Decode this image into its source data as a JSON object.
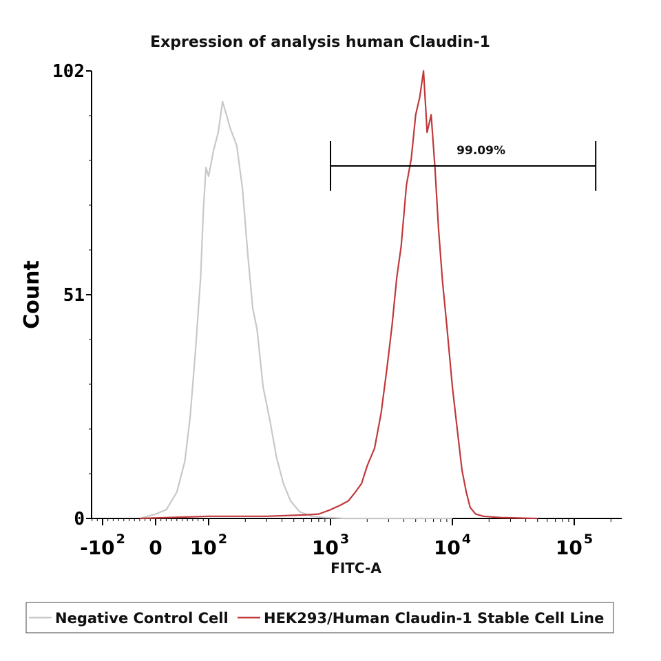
{
  "chart_data": {
    "type": "line",
    "title": "Expression of analysis human Claudin-1",
    "xlabel": "FITC-A",
    "ylabel": "Count",
    "x_scale": "biexponential",
    "x_range": [
      -200,
      200000
    ],
    "ylim": [
      0,
      102
    ],
    "y_ticks": [
      "0",
      "51",
      "102"
    ],
    "x_ticks": [
      {
        "value": -100,
        "base": "-10",
        "exp": "2"
      },
      {
        "value": 0,
        "base": "0",
        "exp": ""
      },
      {
        "value": 100,
        "base": "10",
        "exp": "2"
      },
      {
        "value": 1000,
        "base": "10",
        "exp": "3"
      },
      {
        "value": 10000,
        "base": "10",
        "exp": "4"
      },
      {
        "value": 100000,
        "base": "10",
        "exp": "5"
      }
    ],
    "gate": {
      "label": "99.09%",
      "x_start": 1000,
      "x_end": 150000
    },
    "grid": false,
    "legend_position": "bottom",
    "series": [
      {
        "name": "Negative Control Cell",
        "color": "#c8c8c8",
        "points": [
          [
            -30,
            0
          ],
          [
            0,
            1
          ],
          [
            20,
            2
          ],
          [
            40,
            6
          ],
          [
            55,
            13
          ],
          [
            65,
            23
          ],
          [
            75,
            38
          ],
          [
            85,
            55
          ],
          [
            90,
            70
          ],
          [
            95,
            80
          ],
          [
            100,
            78
          ],
          [
            110,
            84
          ],
          [
            120,
            88
          ],
          [
            130,
            95
          ],
          [
            140,
            92
          ],
          [
            150,
            89
          ],
          [
            170,
            85
          ],
          [
            190,
            75
          ],
          [
            210,
            60
          ],
          [
            230,
            48
          ],
          [
            250,
            43
          ],
          [
            280,
            30
          ],
          [
            320,
            22
          ],
          [
            360,
            14
          ],
          [
            410,
            8
          ],
          [
            470,
            4
          ],
          [
            560,
            1.5
          ],
          [
            700,
            0.5
          ],
          [
            900,
            0.2
          ],
          [
            1300,
            0
          ],
          [
            3000,
            0
          ],
          [
            10000,
            0
          ]
        ]
      },
      {
        "name": "HEK293/Human Claudin-1 Stable Cell Line",
        "color": "#c0383a",
        "points": [
          [
            -30,
            0
          ],
          [
            100,
            0.5
          ],
          [
            300,
            0.5
          ],
          [
            600,
            0.8
          ],
          [
            800,
            1
          ],
          [
            1000,
            2
          ],
          [
            1200,
            3
          ],
          [
            1400,
            4
          ],
          [
            1600,
            6
          ],
          [
            1800,
            8
          ],
          [
            2000,
            12
          ],
          [
            2300,
            16
          ],
          [
            2600,
            24
          ],
          [
            2900,
            34
          ],
          [
            3200,
            44
          ],
          [
            3500,
            55
          ],
          [
            3800,
            62
          ],
          [
            4200,
            76
          ],
          [
            4600,
            82
          ],
          [
            5000,
            92
          ],
          [
            5400,
            96
          ],
          [
            5800,
            102
          ],
          [
            6200,
            88
          ],
          [
            6700,
            92
          ],
          [
            7200,
            80
          ],
          [
            7700,
            66
          ],
          [
            8300,
            54
          ],
          [
            9000,
            44
          ],
          [
            10000,
            30
          ],
          [
            11000,
            20
          ],
          [
            12000,
            11
          ],
          [
            13000,
            6
          ],
          [
            14000,
            2.5
          ],
          [
            15500,
            1
          ],
          [
            18000,
            0.5
          ],
          [
            25000,
            0.2
          ],
          [
            35000,
            0.1
          ],
          [
            50000,
            0
          ]
        ]
      }
    ]
  }
}
